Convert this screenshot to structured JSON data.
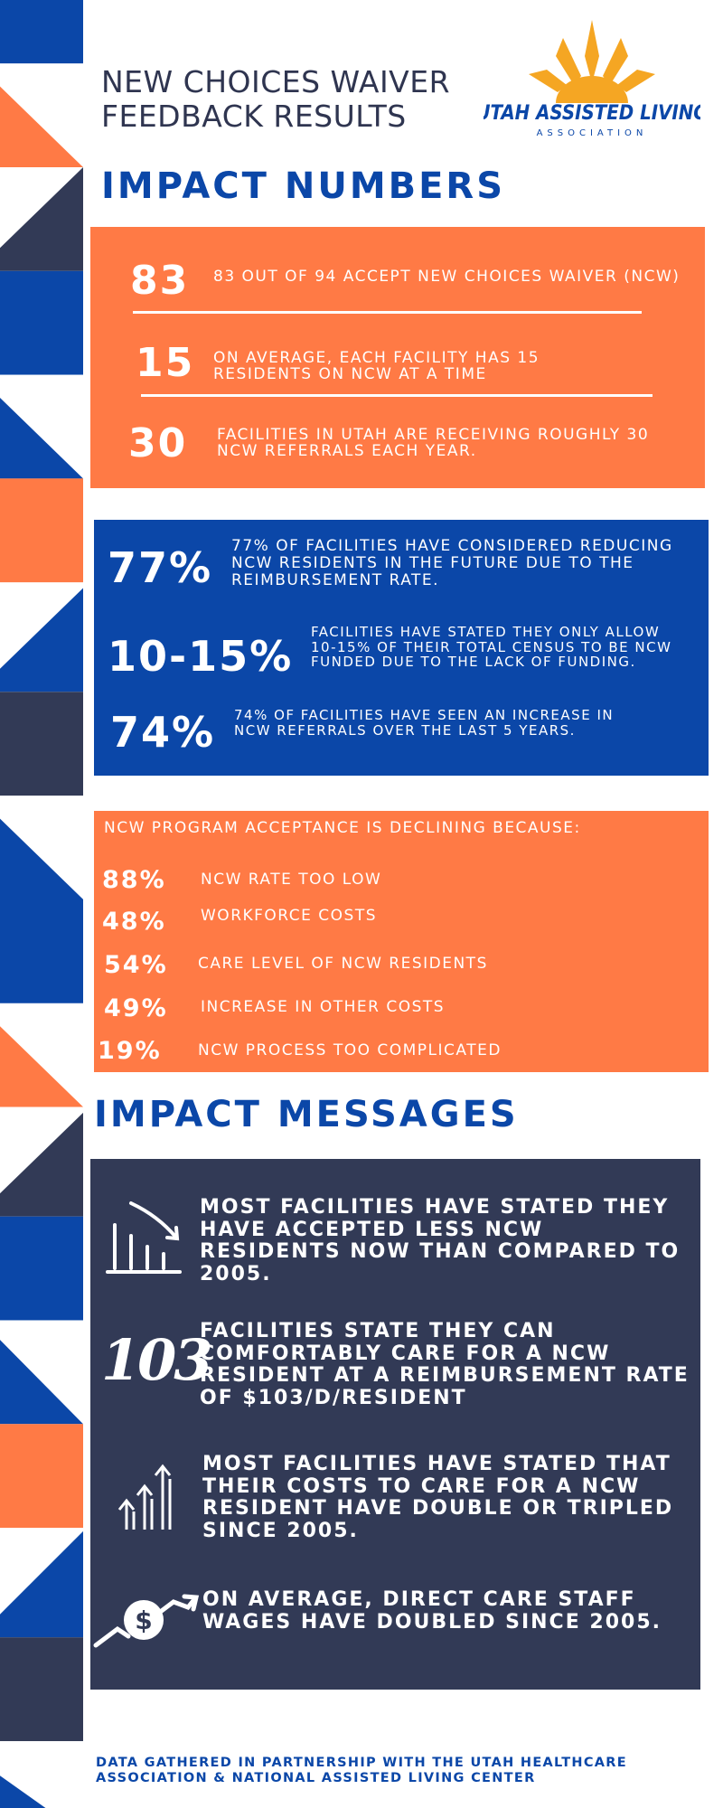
{
  "header": {
    "title": [
      "NEW CHOICES WAIVER",
      "FEEDBACK RESULTS"
    ],
    "logo": {
      "name": "UTAH ASSISTED LIVING",
      "tagline": "ASSOCIATION"
    }
  },
  "impact_numbers": {
    "heading": "IMPACT NUMBERS",
    "stats": [
      {
        "figure": "83",
        "text": "83 OUT OF 94 ACCEPT NEW CHOICES WAIVER (NCW)"
      },
      {
        "figure": "15",
        "text": "ON AVERAGE, EACH FACILITY HAS 15 RESIDENTS ON NCW AT A TIME"
      },
      {
        "figure": "30",
        "text": "FACILITIES IN UTAH ARE RECEIVING ROUGHLY 30 NCW REFERRALS EACH YEAR."
      }
    ]
  },
  "facility_stats": [
    {
      "figure": "77%",
      "text": "77% OF FACILITIES HAVE CONSIDERED REDUCING NCW RESIDENTS IN THE FUTURE DUE TO THE REIMBURSEMENT RATE."
    },
    {
      "figure": "10-15%",
      "text": "FACILITIES HAVE STATED THEY ONLY ALLOW 10-15% OF THEIR TOTAL CENSUS TO BE NCW FUNDED DUE TO THE LACK OF FUNDING."
    },
    {
      "figure": "74%",
      "text": "74% OF FACILITIES HAVE SEEN AN INCREASE IN NCW REFERRALS OVER THE LAST 5 YEARS."
    }
  ],
  "decline": {
    "heading": "NCW PROGRAM ACCEPTANCE IS DECLINING BECAUSE:",
    "reasons": [
      {
        "figure": "88%",
        "text": "NCW RATE TOO LOW"
      },
      {
        "figure": "48%",
        "text": "WORKFORCE COSTS"
      },
      {
        "figure": "54%",
        "text": "CARE LEVEL OF NCW RESIDENTS"
      },
      {
        "figure": "49%",
        "text": "INCREASE IN OTHER COSTS"
      },
      {
        "figure": "19%",
        "text": "NCW PROCESS TOO COMPLICATED"
      }
    ]
  },
  "impact_messages": {
    "heading": "IMPACT MESSAGES",
    "messages": [
      {
        "text": "MOST FACILITIES HAVE STATED THEY HAVE ACCEPTED LESS NCW RESIDENTS NOW THAN COMPARED TO 2005."
      },
      {
        "figure": "103",
        "text": "FACILITIES STATE THEY CAN COMFORTABLY CARE FOR A NCW RESIDENT AT A REIMBURSEMENT RATE OF $103/D/RESIDENT"
      },
      {
        "text": "MOST FACILITIES HAVE STATED THAT THEIR COSTS TO CARE FOR A NCW RESIDENT HAVE DOUBLE OR TRIPLED SINCE 2005."
      },
      {
        "text": "ON AVERAGE, DIRECT CARE STAFF WAGES HAVE DOUBLED SINCE 2005."
      }
    ]
  },
  "footer": "DATA GATHERED IN PARTNERSHIP WITH THE UTAH HEALTHCARE ASSOCIATION & NATIONAL ASSISTED LIVING CENTER"
}
